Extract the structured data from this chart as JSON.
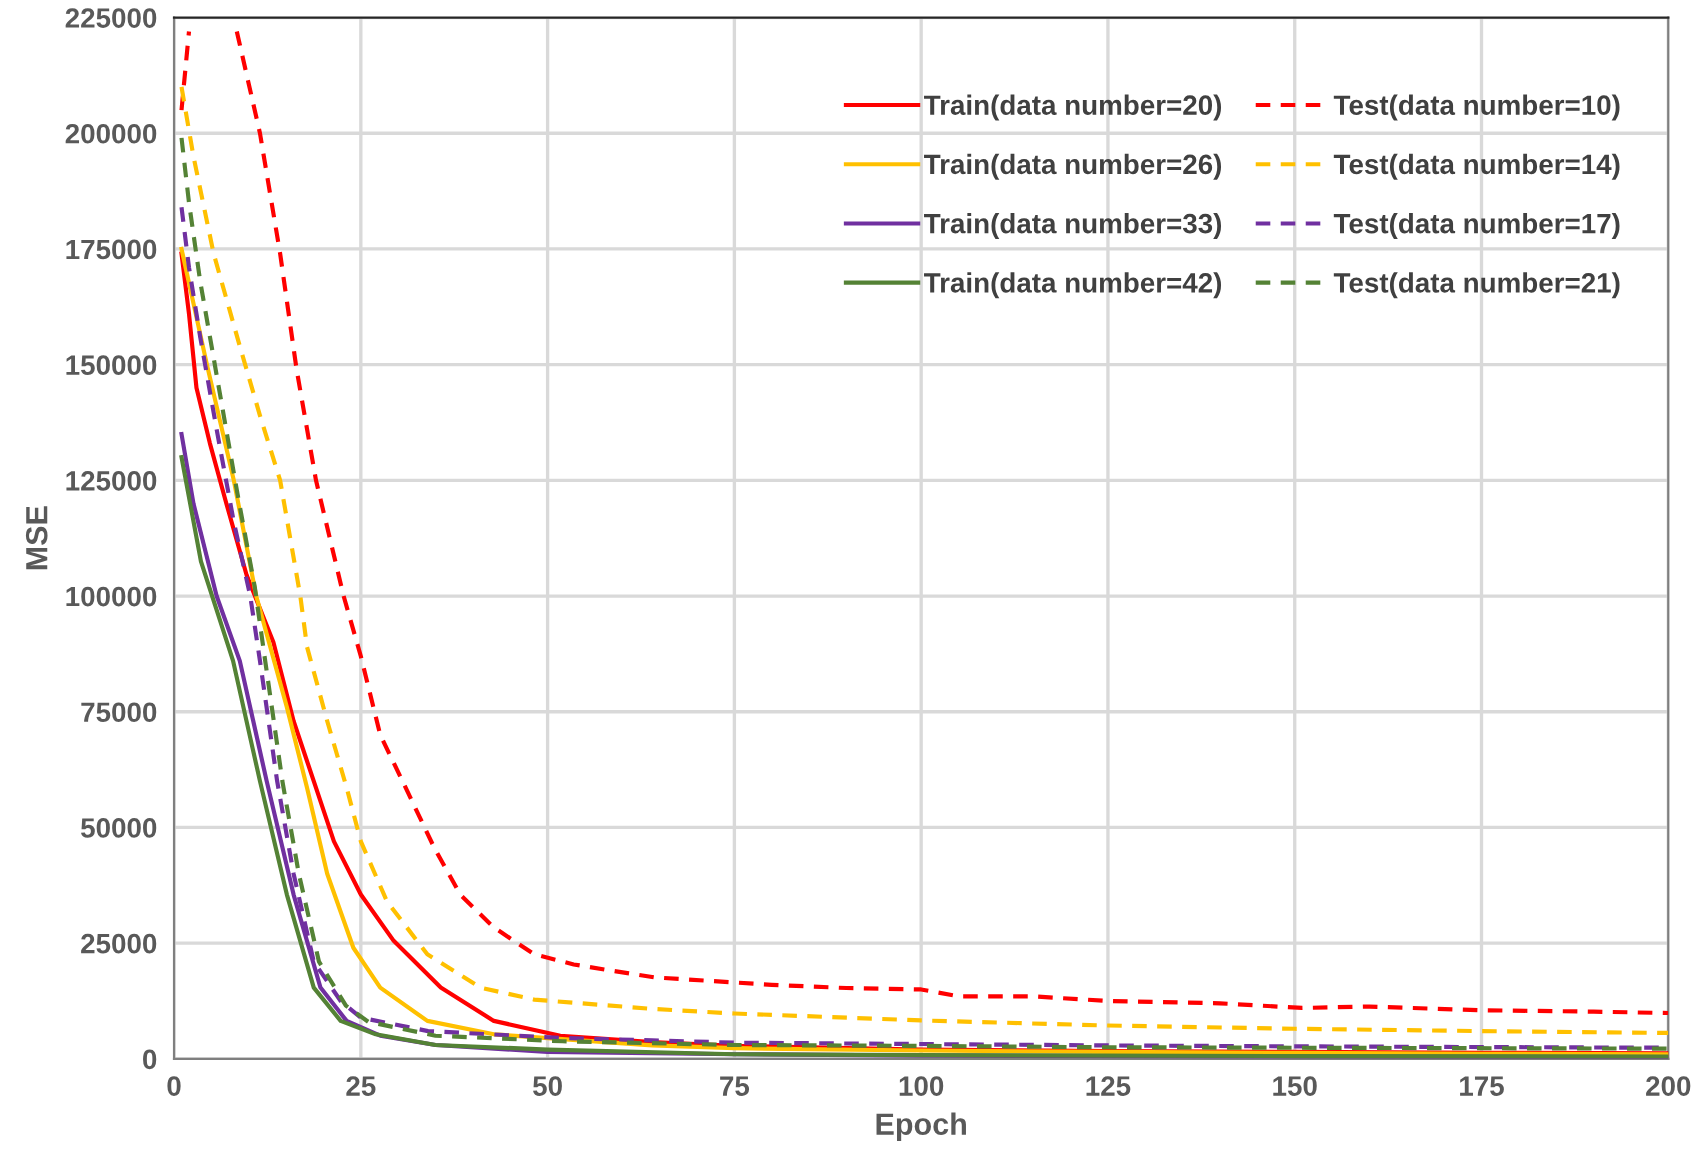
{
  "chart_data": {
    "type": "line",
    "xlabel": "Epoch",
    "ylabel": "MSE",
    "xlim": [
      0,
      200
    ],
    "xticks": [
      0,
      25,
      50,
      75,
      100,
      125,
      150,
      175,
      200
    ],
    "ylim": [
      0,
      225000
    ],
    "yticks": [
      0,
      25000,
      50000,
      75000,
      100000,
      125000,
      150000,
      175000,
      200000,
      225000
    ],
    "grid": true,
    "legend": "top right",
    "marker": "none",
    "series": [
      {
        "name": "Train(data number=20)",
        "color": "#ff0000",
        "line_style": "solid",
        "x": [
          1,
          2,
          3,
          4.8,
          7,
          9.7,
          13.3,
          16,
          18.7,
          21.4,
          25,
          29.4,
          35.7,
          42.8,
          51.7,
          64,
          75,
          100,
          125,
          150,
          175,
          200
        ],
        "values": [
          174000,
          161000,
          145000,
          133000,
          120000,
          104600,
          90000,
          73000,
          60000,
          47000,
          35500,
          25500,
          15400,
          8200,
          5000,
          3600,
          2800,
          2000,
          1700,
          1500,
          1300,
          1200
        ]
      },
      {
        "name": "Test(data number=10)",
        "color": "#ff0000",
        "line_style": "dashed",
        "x": [
          1,
          2,
          5,
          8.4,
          11.5,
          14.2,
          16.4,
          19,
          22.7,
          25,
          27.6,
          31,
          34.8,
          38.3,
          42.8,
          48.2,
          53.5,
          58,
          64.3,
          75,
          80,
          90,
          100,
          105,
          115,
          125,
          140,
          151,
          160,
          175,
          190,
          200
        ],
        "values": [
          205000,
          222000,
          null,
          222000,
          200000,
          174000,
          149000,
          125000,
          100000,
          87000,
          70000,
          58600,
          45700,
          35500,
          28400,
          22600,
          20400,
          19200,
          17600,
          16500,
          16000,
          15300,
          15000,
          13500,
          13500,
          12500,
          12000,
          11000,
          11300,
          10500,
          10200,
          9900
        ]
      },
      {
        "name": "Train(data number=26)",
        "color": "#ffc000",
        "line_style": "solid",
        "x": [
          1,
          4.4,
          8,
          11,
          15.1,
          17.8,
          20.5,
          24,
          27.6,
          33.9,
          42.8,
          64,
          75,
          100,
          125,
          150,
          175,
          200
        ],
        "values": [
          175000,
          150000,
          125000,
          100000,
          76000,
          58600,
          40000,
          24000,
          15400,
          8200,
          5300,
          2900,
          2300,
          1800,
          1500,
          1300,
          1100,
          1000
        ]
      },
      {
        "name": "Test(data number=14)",
        "color": "#ffc000",
        "line_style": "dashed",
        "x": [
          1,
          2.6,
          5.3,
          8.8,
          11.5,
          14.2,
          16.9,
          17.8,
          20.5,
          23.1,
          25,
          28.5,
          33.9,
          41,
          48.2,
          64,
          75,
          100,
          125,
          150,
          175,
          200
        ],
        "values": [
          210000,
          195000,
          174000,
          154000,
          139000,
          125000,
          100000,
          89000,
          73000,
          58600,
          47000,
          34000,
          22600,
          15400,
          12800,
          10800,
          9800,
          8300,
          7200,
          6500,
          6000,
          5600
        ]
      },
      {
        "name": "Train(data number=33)",
        "color": "#7030a0",
        "line_style": "solid",
        "x": [
          1,
          2.6,
          5.7,
          8.8,
          12.4,
          16,
          19.6,
          23.1,
          27.6,
          35,
          50,
          75,
          100,
          150,
          200
        ],
        "values": [
          135000,
          120000,
          100000,
          86000,
          60000,
          35500,
          15400,
          8200,
          5000,
          3000,
          1500,
          1000,
          700,
          500,
          400
        ]
      },
      {
        "name": "Test(data number=17)",
        "color": "#7030a0",
        "line_style": "dashed",
        "x": [
          1,
          2,
          3.5,
          5.7,
          8,
          10.2,
          11.5,
          13.8,
          16,
          18.7,
          22.3,
          25,
          34,
          52,
          64,
          75,
          100,
          125,
          150,
          200
        ],
        "values": [
          184000,
          171000,
          156000,
          136000,
          116000,
          100000,
          86000,
          60000,
          40000,
          21000,
          12500,
          8900,
          6000,
          4500,
          4000,
          3500,
          3200,
          2900,
          2700,
          2400
        ]
      },
      {
        "name": "Train(data number=42)",
        "color": "#548235",
        "line_style": "solid",
        "x": [
          1,
          3.6,
          7.9,
          11.5,
          15.1,
          18.7,
          22.3,
          27,
          35,
          50,
          75,
          100,
          150,
          200
        ],
        "values": [
          130000,
          107500,
          86000,
          60000,
          35500,
          15400,
          8200,
          5300,
          3000,
          2000,
          1000,
          800,
          600,
          500
        ]
      },
      {
        "name": "Test(data number=21)",
        "color": "#548235",
        "line_style": "dashed",
        "x": [
          1,
          2,
          3.5,
          6,
          8.5,
          10.8,
          12.2,
          14.5,
          16.7,
          19.4,
          23,
          26,
          35,
          52,
          75,
          100,
          125,
          150,
          200
        ],
        "values": [
          199000,
          185000,
          168000,
          145000,
          122000,
          102000,
          86000,
          60000,
          40000,
          21000,
          11500,
          8000,
          5000,
          3800,
          3000,
          2800,
          2500,
          2400,
          2200
        ]
      }
    ]
  }
}
